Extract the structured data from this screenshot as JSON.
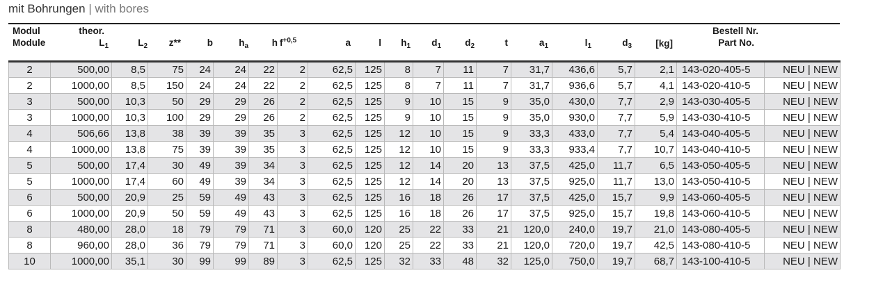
{
  "title": {
    "de": "mit Bohrungen",
    "sep": "|",
    "en": "with bores"
  },
  "headers": {
    "modul": "Modul",
    "module": "Module",
    "theor": "theor.",
    "L1": "L",
    "L1_sub": "1",
    "L2": "L",
    "L2_sub": "2",
    "z": "z**",
    "b": "b",
    "ha": "h",
    "ha_sub": "a",
    "h": "h",
    "f": "f",
    "f_sup": "+0,5",
    "a": "a",
    "l": "l",
    "h1": "h",
    "h1_sub": "1",
    "d1": "d",
    "d1_sub": "1",
    "d2": "d",
    "d2_sub": "2",
    "t": "t",
    "a1": "a",
    "a1_sub": "1",
    "l1": "l",
    "l1_sub": "1",
    "d3": "d",
    "d3_sub": "3",
    "kg": "[kg]",
    "bestell": "Bestell Nr.",
    "part": "Part No."
  },
  "rows": [
    [
      "2",
      "500,00",
      "8,5",
      "75",
      "24",
      "24",
      "22",
      "2",
      "62,5",
      "125",
      "8",
      "7",
      "11",
      "7",
      "31,7",
      "436,6",
      "5,7",
      "2,1",
      "143-020-405-5",
      "NEU | NEW"
    ],
    [
      "2",
      "1000,00",
      "8,5",
      "150",
      "24",
      "24",
      "22",
      "2",
      "62,5",
      "125",
      "8",
      "7",
      "11",
      "7",
      "31,7",
      "936,6",
      "5,7",
      "4,1",
      "143-020-410-5",
      "NEU | NEW"
    ],
    [
      "3",
      "500,00",
      "10,3",
      "50",
      "29",
      "29",
      "26",
      "2",
      "62,5",
      "125",
      "9",
      "10",
      "15",
      "9",
      "35,0",
      "430,0",
      "7,7",
      "2,9",
      "143-030-405-5",
      "NEU | NEW"
    ],
    [
      "3",
      "1000,00",
      "10,3",
      "100",
      "29",
      "29",
      "26",
      "2",
      "62,5",
      "125",
      "9",
      "10",
      "15",
      "9",
      "35,0",
      "930,0",
      "7,7",
      "5,9",
      "143-030-410-5",
      "NEU | NEW"
    ],
    [
      "4",
      "506,66",
      "13,8",
      "38",
      "39",
      "39",
      "35",
      "3",
      "62,5",
      "125",
      "12",
      "10",
      "15",
      "9",
      "33,3",
      "433,0",
      "7,7",
      "5,4",
      "143-040-405-5",
      "NEU | NEW"
    ],
    [
      "4",
      "1000,00",
      "13,8",
      "75",
      "39",
      "39",
      "35",
      "3",
      "62,5",
      "125",
      "12",
      "10",
      "15",
      "9",
      "33,3",
      "933,4",
      "7,7",
      "10,7",
      "143-040-410-5",
      "NEU | NEW"
    ],
    [
      "5",
      "500,00",
      "17,4",
      "30",
      "49",
      "39",
      "34",
      "3",
      "62,5",
      "125",
      "12",
      "14",
      "20",
      "13",
      "37,5",
      "425,0",
      "11,7",
      "6,5",
      "143-050-405-5",
      "NEU | NEW"
    ],
    [
      "5",
      "1000,00",
      "17,4",
      "60",
      "49",
      "39",
      "34",
      "3",
      "62,5",
      "125",
      "12",
      "14",
      "20",
      "13",
      "37,5",
      "925,0",
      "11,7",
      "13,0",
      "143-050-410-5",
      "NEU | NEW"
    ],
    [
      "6",
      "500,00",
      "20,9",
      "25",
      "59",
      "49",
      "43",
      "3",
      "62,5",
      "125",
      "16",
      "18",
      "26",
      "17",
      "37,5",
      "425,0",
      "15,7",
      "9,9",
      "143-060-405-5",
      "NEU | NEW"
    ],
    [
      "6",
      "1000,00",
      "20,9",
      "50",
      "59",
      "49",
      "43",
      "3",
      "62,5",
      "125",
      "16",
      "18",
      "26",
      "17",
      "37,5",
      "925,0",
      "15,7",
      "19,8",
      "143-060-410-5",
      "NEU | NEW"
    ],
    [
      "8",
      "480,00",
      "28,0",
      "18",
      "79",
      "79",
      "71",
      "3",
      "60,0",
      "120",
      "25",
      "22",
      "33",
      "21",
      "120,0",
      "240,0",
      "19,7",
      "21,0",
      "143-080-405-5",
      "NEU | NEW"
    ],
    [
      "8",
      "960,00",
      "28,0",
      "36",
      "79",
      "79",
      "71",
      "3",
      "60,0",
      "120",
      "25",
      "22",
      "33",
      "21",
      "120,0",
      "720,0",
      "19,7",
      "42,5",
      "143-080-410-5",
      "NEU | NEW"
    ],
    [
      "10",
      "1000,00",
      "35,1",
      "30",
      "99",
      "99",
      "89",
      "3",
      "62,5",
      "125",
      "32",
      "33",
      "48",
      "32",
      "125,0",
      "750,0",
      "19,7",
      "68,7",
      "143-100-410-5",
      "NEU | NEW"
    ]
  ]
}
